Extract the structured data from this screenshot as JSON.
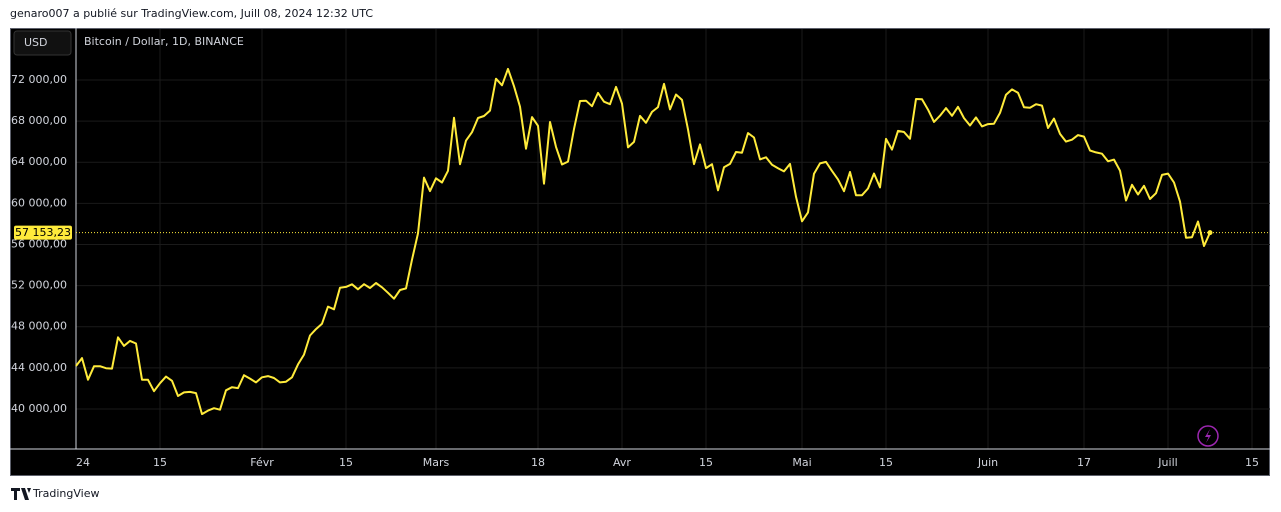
{
  "header": "genaro007 a publié sur TradingView.com, Juill 08, 2024 12:32 UTC",
  "footer": "TradingView",
  "chart_data": {
    "type": "line",
    "title": "Bitcoin / Dollar, 1D, BINANCE",
    "currency": "USD",
    "color": "#ffeb3b",
    "grid": true,
    "x": [
      "2024-01-01",
      "2024-01-02",
      "2024-01-03",
      "2024-01-04",
      "2024-01-05",
      "2024-01-06",
      "2024-01-07",
      "2024-01-08",
      "2024-01-09",
      "2024-01-10",
      "2024-01-11",
      "2024-01-12",
      "2024-01-13",
      "2024-01-14",
      "2024-01-15",
      "2024-01-16",
      "2024-01-17",
      "2024-01-18",
      "2024-01-19",
      "2024-01-20",
      "2024-01-21",
      "2024-01-22",
      "2024-01-23",
      "2024-01-24",
      "2024-01-25",
      "2024-01-26",
      "2024-01-27",
      "2024-01-28",
      "2024-01-29",
      "2024-01-30",
      "2024-01-31",
      "2024-02-01",
      "2024-02-02",
      "2024-02-03",
      "2024-02-04",
      "2024-02-05",
      "2024-02-06",
      "2024-02-07",
      "2024-02-08",
      "2024-02-09",
      "2024-02-10",
      "2024-02-11",
      "2024-02-12",
      "2024-02-13",
      "2024-02-14",
      "2024-02-15",
      "2024-02-16",
      "2024-02-17",
      "2024-02-18",
      "2024-02-19",
      "2024-02-20",
      "2024-02-21",
      "2024-02-22",
      "2024-02-23",
      "2024-02-24",
      "2024-02-25",
      "2024-02-26",
      "2024-02-27",
      "2024-02-28",
      "2024-02-29",
      "2024-03-01",
      "2024-03-02",
      "2024-03-03",
      "2024-03-04",
      "2024-03-05",
      "2024-03-06",
      "2024-03-07",
      "2024-03-08",
      "2024-03-09",
      "2024-03-10",
      "2024-03-11",
      "2024-03-12",
      "2024-03-13",
      "2024-03-14",
      "2024-03-15",
      "2024-03-16",
      "2024-03-17",
      "2024-03-18",
      "2024-03-19",
      "2024-03-20",
      "2024-03-21",
      "2024-03-22",
      "2024-03-23",
      "2024-03-24",
      "2024-03-25",
      "2024-03-26",
      "2024-03-27",
      "2024-03-28",
      "2024-03-29",
      "2024-03-30",
      "2024-03-31",
      "2024-04-01",
      "2024-04-02",
      "2024-04-03",
      "2024-04-04",
      "2024-04-05",
      "2024-04-06",
      "2024-04-07",
      "2024-04-08",
      "2024-04-09",
      "2024-04-10",
      "2024-04-11",
      "2024-04-12",
      "2024-04-13",
      "2024-04-14",
      "2024-04-15",
      "2024-04-16",
      "2024-04-17",
      "2024-04-18",
      "2024-04-19",
      "2024-04-20",
      "2024-04-21",
      "2024-04-22",
      "2024-04-23",
      "2024-04-24",
      "2024-04-25",
      "2024-04-26",
      "2024-04-27",
      "2024-04-28",
      "2024-04-29",
      "2024-04-30",
      "2024-05-01",
      "2024-05-02",
      "2024-05-03",
      "2024-05-04",
      "2024-05-05",
      "2024-05-06",
      "2024-05-07",
      "2024-05-08",
      "2024-05-09",
      "2024-05-10",
      "2024-05-11",
      "2024-05-12",
      "2024-05-13",
      "2024-05-14",
      "2024-05-15",
      "2024-05-16",
      "2024-05-17",
      "2024-05-18",
      "2024-05-19",
      "2024-05-20",
      "2024-05-21",
      "2024-05-22",
      "2024-05-23",
      "2024-05-24",
      "2024-05-25",
      "2024-05-26",
      "2024-05-27",
      "2024-05-28",
      "2024-05-29",
      "2024-05-30",
      "2024-05-31",
      "2024-06-01",
      "2024-06-02",
      "2024-06-03",
      "2024-06-04",
      "2024-06-05",
      "2024-06-06",
      "2024-06-07",
      "2024-06-08",
      "2024-06-09",
      "2024-06-10",
      "2024-06-11",
      "2024-06-12",
      "2024-06-13",
      "2024-06-14",
      "2024-06-15",
      "2024-06-16",
      "2024-06-17",
      "2024-06-18",
      "2024-06-19",
      "2024-06-20",
      "2024-06-21",
      "2024-06-22",
      "2024-06-23",
      "2024-06-24",
      "2024-06-25",
      "2024-06-26",
      "2024-06-27",
      "2024-06-28",
      "2024-06-29",
      "2024-06-30",
      "2024-07-01",
      "2024-07-02",
      "2024-07-03",
      "2024-07-04",
      "2024-07-05",
      "2024-07-06",
      "2024-07-07",
      "2024-07-08"
    ],
    "values": [
      44180,
      44946,
      42845,
      44151,
      44162,
      43968,
      43929,
      46970,
      46139,
      46627,
      46368,
      42853,
      42842,
      41733,
      42511,
      43154,
      42742,
      41262,
      41618,
      41665,
      41545,
      39507,
      39845,
      40077,
      39934,
      41816,
      42120,
      42035,
      43288,
      42952,
      42582,
      43082,
      43200,
      43011,
      42583,
      42658,
      43085,
      44341,
      45293,
      47147,
      47771,
      48293,
      49958,
      49699,
      51795,
      51880,
      52124,
      51643,
      52137,
      51765,
      52259,
      51839,
      51304,
      50731,
      51571,
      51733,
      54522,
      57085,
      62504,
      61198,
      62440,
      62029,
      63167,
      68330,
      63801,
      66106,
      66925,
      68300,
      68498,
      69019,
      72123,
      71481,
      73083,
      71396,
      69403,
      65315,
      68390,
      67548,
      61913,
      67914,
      65491,
      63778,
      64062,
      67234,
      69958,
      69987,
      69455,
      70744,
      69892,
      69645,
      71333,
      69702,
      65446,
      65980,
      68508,
      67837,
      68896,
      69360,
      71620,
      69139,
      70587,
      70060,
      67195,
      63821,
      65738,
      63426,
      63811,
      61276,
      63512,
      63843,
      64994,
      64927,
      66837,
      66407,
      64276,
      64481,
      63755,
      63419,
      63114,
      63841,
      60636,
      58254,
      59123,
      62889,
      63891,
      64031,
      63162,
      62334,
      61187,
      63049,
      60792,
      60793,
      61448,
      62901,
      61553,
      66267,
      65231,
      67051,
      66940,
      66278,
      70148,
      70136,
      69122,
      67929,
      68526,
      69265,
      68518,
      69394,
      68296,
      67578,
      68364,
      67491,
      67706,
      67751,
      68804,
      70567,
      71082,
      70757,
      69342,
      69305,
      69648,
      69512,
      67332,
      68241,
      66756,
      66012,
      66191,
      66639,
      66491,
      65140,
      64960,
      64828,
      64096,
      64253,
      63180,
      60277,
      61805,
      60864,
      61706,
      60427,
      60986,
      62773,
      62900,
      62029,
      60173,
      56663,
      56706,
      58240,
      55857,
      57153.23
    ],
    "last_price": {
      "value": 57153.23,
      "label": "57 153,23"
    },
    "xlim": [
      "2024-01-01",
      "2024-07-18"
    ],
    "xticks": [
      {
        "value": "2024-01-01",
        "label": "24"
      },
      {
        "value": "2024-01-15",
        "label": "15"
      },
      {
        "value": "2024-02-01",
        "label": "Févr"
      },
      {
        "value": "2024-02-15",
        "label": "15"
      },
      {
        "value": "2024-03-01",
        "label": "Mars"
      },
      {
        "value": "2024-03-18",
        "label": "18"
      },
      {
        "value": "2024-04-01",
        "label": "Avr"
      },
      {
        "value": "2024-04-15",
        "label": "15"
      },
      {
        "value": "2024-05-01",
        "label": "Mai"
      },
      {
        "value": "2024-05-15",
        "label": "15"
      },
      {
        "value": "2024-06-01",
        "label": "Juin"
      },
      {
        "value": "2024-06-17",
        "label": "17"
      },
      {
        "value": "2024-07-01",
        "label": "Juill"
      },
      {
        "value": "2024-07-15",
        "label": "15"
      }
    ],
    "ylim": [
      36109,
      76960
    ],
    "yticks": [
      {
        "value": 40000,
        "label": "40 000,00"
      },
      {
        "value": 44000,
        "label": "44 000,00"
      },
      {
        "value": 48000,
        "label": "48 000,00"
      },
      {
        "value": 52000,
        "label": "52 000,00"
      },
      {
        "value": 56000,
        "label": "56 000,00"
      },
      {
        "value": 60000,
        "label": "60 000,00"
      },
      {
        "value": 64000,
        "label": "64 000,00"
      },
      {
        "value": 68000,
        "label": "68 000,00"
      },
      {
        "value": 72000,
        "label": "72 000,00"
      }
    ]
  }
}
